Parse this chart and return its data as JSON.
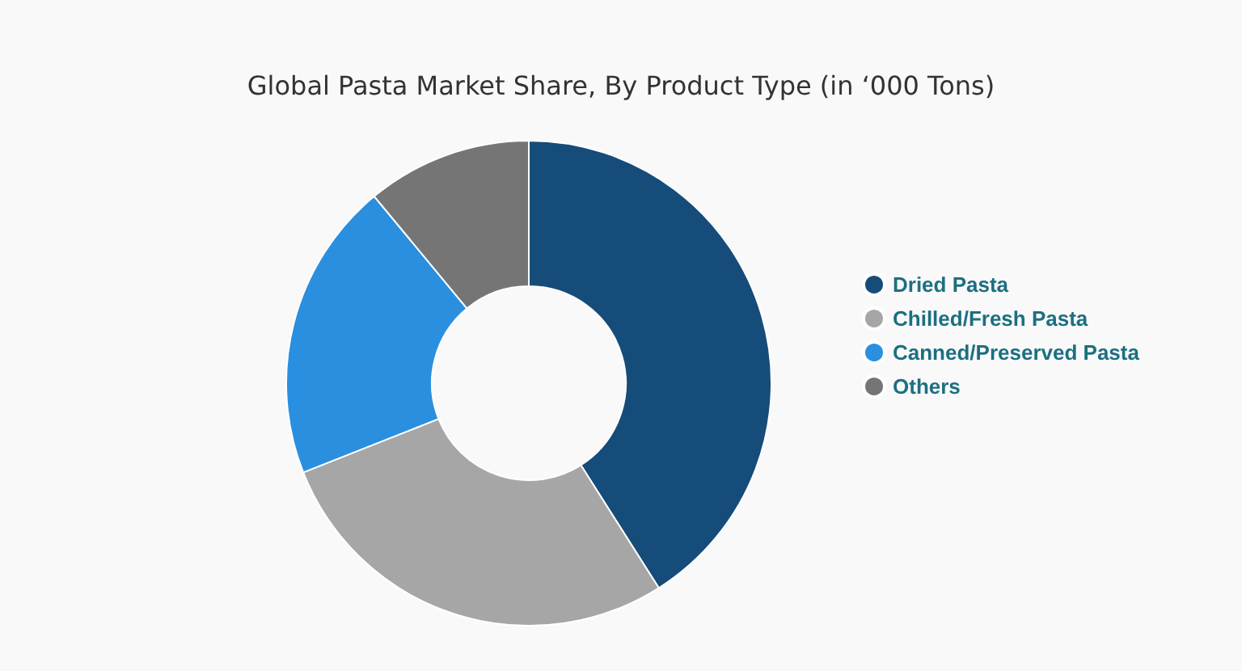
{
  "chart_data": {
    "type": "donut",
    "title": "Global Pasta Market Share, By Product Type (in ‘000 Tons)",
    "categories": [
      "Dried Pasta",
      "Chilled/Fresh Pasta",
      "Canned/Preserved Pasta",
      "Others"
    ],
    "values": [
      41,
      28,
      20,
      11
    ],
    "colors": [
      "#154c79",
      "#a6a6a6",
      "#2a8fdf",
      "#757575"
    ],
    "legend": "right"
  }
}
